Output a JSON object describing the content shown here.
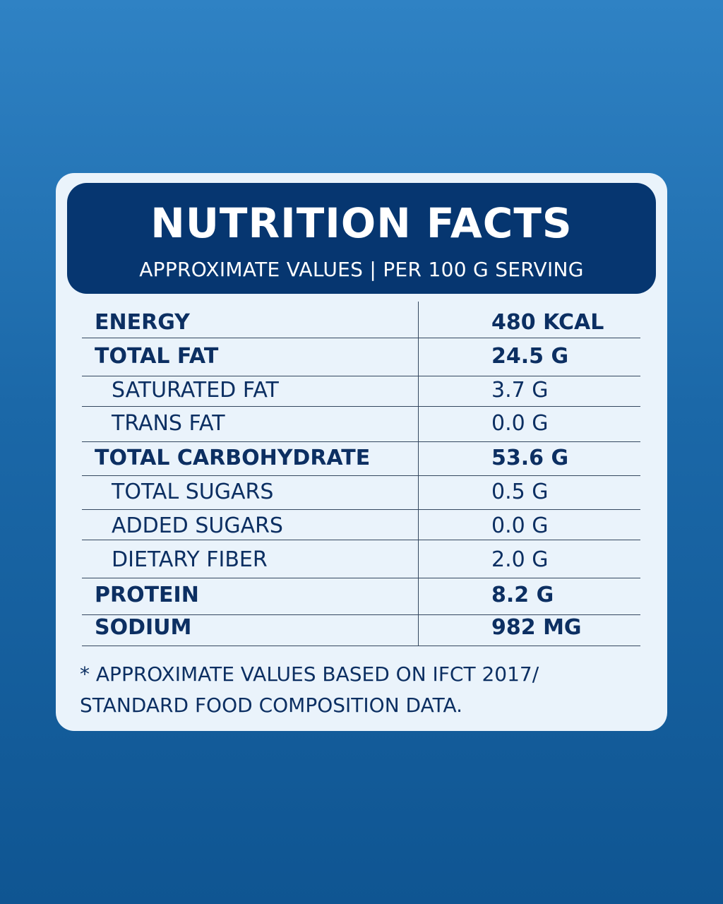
{
  "header": {
    "title": "NUTRITION FACTS",
    "subtitle": "APPROXIMATE VALUES | PER 100 G SERVING"
  },
  "rows": [
    {
      "label": "ENERGY",
      "value": "480 KCAL",
      "style": "main"
    },
    {
      "label": "TOTAL FAT",
      "value": "24.5 G",
      "style": "main"
    },
    {
      "label": "SATURATED FAT",
      "value": "3.7 G",
      "style": "sub"
    },
    {
      "label": "TRANS FAT",
      "value": "0.0 G",
      "style": "sub"
    },
    {
      "label": "TOTAL CARBOHYDRATE",
      "value": "53.6 G",
      "style": "main"
    },
    {
      "label": "TOTAL SUGARS",
      "value": "0.5 G",
      "style": "sub"
    },
    {
      "label": "ADDED SUGARS",
      "value": "0.0 G",
      "style": "sub"
    },
    {
      "label": "DIETARY FIBER",
      "value": "2.0 G",
      "style": "sub"
    },
    {
      "label": "PROTEIN",
      "value": "8.2 G",
      "style": "main"
    },
    {
      "label": "SODIUM",
      "value": "982 MG",
      "style": "main"
    }
  ],
  "footnote": {
    "line1": "* APPROXIMATE VALUES BASED ON IFCT 2017/",
    "line2": "STANDARD FOOD COMPOSITION DATA."
  },
  "colors": {
    "background_top": "#2f82c4",
    "background_bottom": "#0f5592",
    "card": "#eaf3fb",
    "header": "#063670",
    "text": "#0c2f62"
  }
}
